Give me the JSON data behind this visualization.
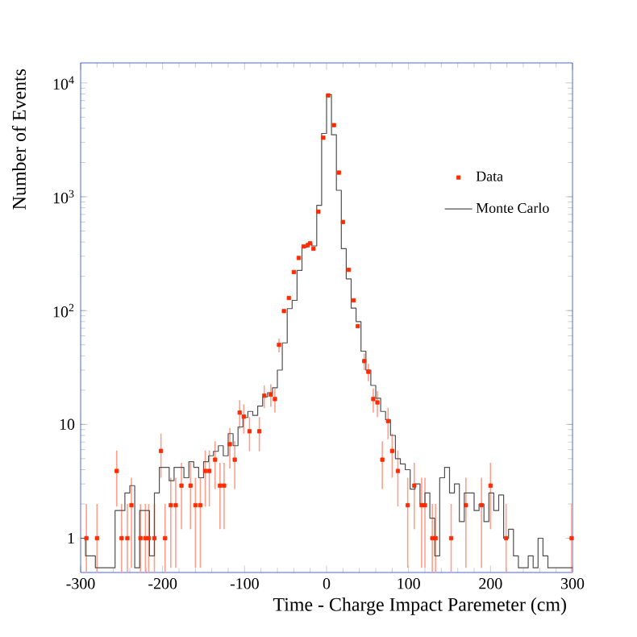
{
  "chart_data": {
    "type": "scatter",
    "xlabel": "Time - Charge Impact Paremeter (cm)",
    "ylabel": "Number of Events",
    "log": "y",
    "xlim": [
      -300,
      300
    ],
    "ylim": [
      0.5,
      15000
    ],
    "xticks": [
      -300,
      -200,
      -100,
      0,
      100,
      200,
      300
    ],
    "yticks": [
      {
        "value": 1,
        "label": "1"
      },
      {
        "value": 10,
        "label": "10"
      },
      {
        "value": 100,
        "label": "10$^{2}$"
      },
      {
        "value": 1000,
        "label": "10$^{3}$"
      },
      {
        "value": 10000,
        "label": "10$^{4}$"
      }
    ],
    "legend": "top right",
    "grid": false,
    "series": [
      {
        "name": "Data",
        "marker": "square",
        "color": "#ff2a00",
        "x": [
          -293,
          -280,
          -256,
          -250,
          -243,
          -238,
          -227,
          -221,
          -217,
          -210,
          -202,
          -197,
          -190,
          -184,
          -177,
          -166,
          -160,
          -154,
          -148,
          -143,
          -136,
          -130,
          -125,
          -118,
          -112,
          -106,
          -101,
          -94,
          -82,
          -76,
          -68,
          -63,
          -58,
          -52,
          -46,
          -40,
          -34,
          -28,
          -23,
          -20,
          -16,
          -10,
          -4,
          2,
          9,
          15,
          20,
          27,
          33,
          38,
          46,
          51,
          57,
          62,
          68,
          75,
          80,
          87,
          99,
          107,
          116,
          120,
          129,
          133,
          152,
          170,
          189,
          200,
          219,
          299
        ],
        "values": [
          1,
          1,
          3.9,
          1,
          1,
          1.95,
          1,
          1,
          1,
          1,
          5.85,
          1,
          1.95,
          1.95,
          2.9,
          2.9,
          1.95,
          1.95,
          3.9,
          3.9,
          4.9,
          2.9,
          2.9,
          6.7,
          4.9,
          12.7,
          11.7,
          8.7,
          8.7,
          17.9,
          18.3,
          16.7,
          50,
          99,
          129,
          218,
          290,
          366,
          375,
          390,
          350,
          740,
          3300,
          7770,
          4260,
          1630,
          600,
          228,
          123,
          73,
          36,
          29,
          16.7,
          15.6,
          4.9,
          10.7,
          5.85,
          3.9,
          1.95,
          2.9,
          1.95,
          1.95,
          1,
          1,
          1,
          1.95,
          1.95,
          2.9,
          1,
          1
        ],
        "errors": [
          [
            0.5,
            2
          ],
          [
            0.5,
            2
          ],
          [
            1.9,
            5.9
          ],
          [
            0.5,
            2
          ],
          [
            0.5,
            2
          ],
          [
            0.55,
            3.4
          ],
          [
            0.5,
            2
          ],
          [
            0.5,
            2
          ],
          [
            0.5,
            2
          ],
          [
            0.5,
            2
          ],
          [
            3.4,
            8.3
          ],
          [
            0.5,
            2
          ],
          [
            0.55,
            3.4
          ],
          [
            0.55,
            3.4
          ],
          [
            1.2,
            4.6
          ],
          [
            1.2,
            4.6
          ],
          [
            0.55,
            3.4
          ],
          [
            0.55,
            3.4
          ],
          [
            1.9,
            5.9
          ],
          [
            1.9,
            5.9
          ],
          [
            2.7,
            7.1
          ],
          [
            1.2,
            4.6
          ],
          [
            1.2,
            4.6
          ],
          [
            4.1,
            9.3
          ],
          [
            2.7,
            7.1
          ],
          [
            9.1,
            16.3
          ],
          [
            8.3,
            15
          ],
          [
            5.8,
            11.6
          ],
          [
            5.8,
            11.6
          ],
          [
            13.9,
            22
          ],
          [
            14.3,
            22.5
          ],
          [
            12.7,
            20.7
          ],
          [
            43,
            57
          ],
          null,
          null,
          null,
          null,
          null,
          null,
          null,
          null,
          null,
          null,
          null,
          null,
          null,
          null,
          null,
          null,
          null,
          [
            30,
            42
          ],
          [
            24,
            34
          ],
          [
            12.7,
            20.7
          ],
          [
            11.6,
            19.6
          ],
          [
            2.7,
            7.1
          ],
          [
            7.4,
            14
          ],
          [
            3.4,
            8.3
          ],
          [
            1.9,
            5.9
          ],
          [
            0.55,
            3.4
          ],
          [
            1.2,
            4.6
          ],
          [
            0.55,
            3.4
          ],
          [
            0.55,
            3.4
          ],
          [
            0.5,
            2
          ],
          [
            0.5,
            2
          ],
          [
            0.5,
            2
          ],
          [
            0.55,
            3.4
          ],
          [
            0.55,
            3.4
          ],
          [
            1.2,
            4.6
          ],
          [
            0.5,
            2
          ],
          [
            0.5,
            2
          ]
        ]
      },
      {
        "name": "Monte Carlo",
        "type": "step",
        "marker": "none",
        "color": "#505050",
        "x": [
          -300,
          -294,
          -288,
          -282,
          -276,
          -270,
          -264,
          -258,
          -252,
          -246,
          -240,
          -234,
          -228,
          -222,
          -216,
          -210,
          -204,
          -198,
          -192,
          -186,
          -180,
          -174,
          -168,
          -162,
          -156,
          -150,
          -144,
          -138,
          -132,
          -126,
          -120,
          -114,
          -108,
          -102,
          -96,
          -90,
          -84,
          -78,
          -72,
          -66,
          -60,
          -54,
          -48,
          -42,
          -36,
          -30,
          -24,
          -18,
          -12,
          -6,
          0,
          6,
          12,
          18,
          24,
          30,
          36,
          42,
          48,
          54,
          60,
          66,
          72,
          78,
          84,
          90,
          96,
          102,
          108,
          114,
          120,
          126,
          132,
          138,
          144,
          150,
          156,
          162,
          168,
          174,
          180,
          186,
          192,
          198,
          204,
          210,
          216,
          222,
          228,
          234,
          240,
          246,
          252,
          258,
          264,
          270,
          276,
          282,
          288,
          294,
          300
        ],
        "values": [
          1,
          0.7,
          0.7,
          0.55,
          0.55,
          0.55,
          0.55,
          1.75,
          1.75,
          2.5,
          2.9,
          0.55,
          1.75,
          1.75,
          0.7,
          2.5,
          4.2,
          4.2,
          3.2,
          4.2,
          4.2,
          3.4,
          4.7,
          4.2,
          3.4,
          4.7,
          5.3,
          5.8,
          6.5,
          5.3,
          8.3,
          6.5,
          9.5,
          11.5,
          13,
          12,
          14.5,
          17.5,
          19,
          21,
          30,
          52,
          104,
          123,
          225,
          360,
          390,
          370,
          840,
          3600,
          7900,
          3500,
          1140,
          350,
          190,
          105,
          80,
          44,
          30,
          22,
          17,
          13,
          11,
          8,
          5,
          4.5,
          4,
          2.7,
          3,
          2,
          2.5,
          1.5,
          0.7,
          3.4,
          4.2,
          2.5,
          3,
          1.4,
          2.5,
          2.5,
          1.75,
          2,
          1.4,
          2.5,
          1.75,
          2.4,
          1,
          1.2,
          0.7,
          0.55,
          0.55,
          0.7,
          0.55,
          1,
          0.7,
          0.55,
          0.55,
          0.55,
          0.55,
          0.55,
          0.55
        ]
      }
    ]
  }
}
